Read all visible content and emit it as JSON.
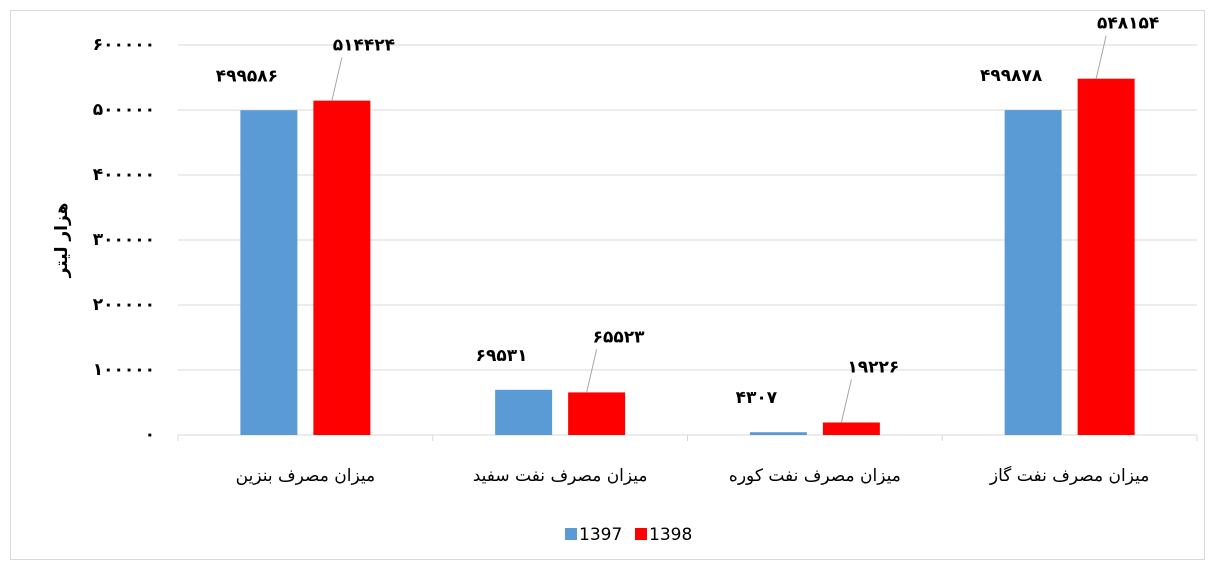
{
  "chart_data": {
    "type": "bar",
    "y_label": "هزار لیتر",
    "categories": [
      "میزان مصرف بنزین",
      "میزان مصرف نفت سفید",
      "میزان مصرف نفت کوره",
      "میزان مصرف نفت گاز"
    ],
    "series": [
      {
        "name": "1397",
        "color": "#5b9bd5",
        "values": [
          499586,
          69531,
          4307,
          499878
        ],
        "value_labels": [
          "۴۹۹۵۸۶",
          "۶۹۵۳۱",
          "۴۳۰۷",
          "۴۹۹۸۷۸"
        ]
      },
      {
        "name": "1398",
        "color": "#ff0000",
        "values": [
          514424,
          65523,
          19226,
          548154
        ],
        "value_labels": [
          "۵۱۴۴۲۴",
          "۶۵۵۲۳",
          "۱۹۲۲۶",
          "۵۴۸۱۵۴"
        ]
      }
    ],
    "ylim": [
      0,
      600000
    ],
    "yticks": [
      {
        "value": 0,
        "label": "۰"
      },
      {
        "value": 100000,
        "label": "۱۰۰۰۰۰"
      },
      {
        "value": 200000,
        "label": "۲۰۰۰۰۰"
      },
      {
        "value": 300000,
        "label": "۳۰۰۰۰۰"
      },
      {
        "value": 400000,
        "label": "۴۰۰۰۰۰"
      },
      {
        "value": 500000,
        "label": "۵۰۰۰۰۰"
      },
      {
        "value": 600000,
        "label": "۶۰۰۰۰۰"
      }
    ],
    "grid": true,
    "legend": "bottom"
  }
}
